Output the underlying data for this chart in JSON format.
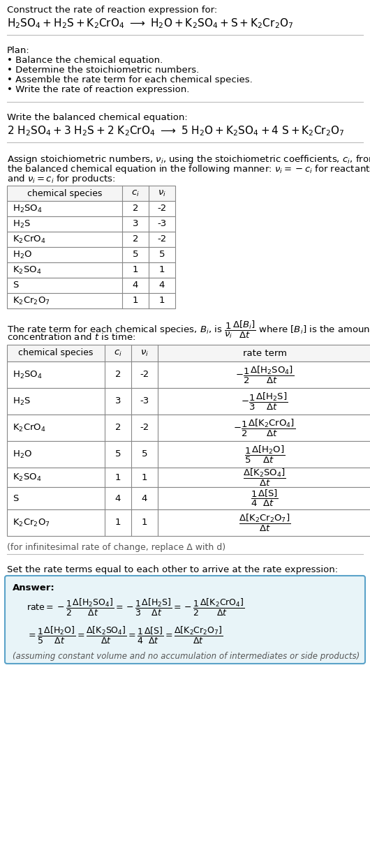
{
  "title_line1": "Construct the rate of reaction expression for:",
  "plan_header": "Plan:",
  "plan_items": [
    "• Balance the chemical equation.",
    "• Determine the stoichiometric numbers.",
    "• Assemble the rate term for each chemical species.",
    "• Write the rate of reaction expression."
  ],
  "balanced_header": "Write the balanced chemical equation:",
  "table1_headers": [
    "chemical species",
    "c_i",
    "v_i"
  ],
  "table1_rows": [
    [
      "H_2SO_4",
      "2",
      "-2"
    ],
    [
      "H_2S",
      "3",
      "-3"
    ],
    [
      "K_2CrO_4",
      "2",
      "-2"
    ],
    [
      "H_2O",
      "5",
      "5"
    ],
    [
      "K_2SO_4",
      "1",
      "1"
    ],
    [
      "S",
      "4",
      "4"
    ],
    [
      "K_2Cr_2O_7",
      "1",
      "1"
    ]
  ],
  "table2_rows": [
    [
      "H_2SO_4",
      "2",
      "-2"
    ],
    [
      "H_2S",
      "3",
      "-3"
    ],
    [
      "K_2CrO_4",
      "2",
      "-2"
    ],
    [
      "H_2O",
      "5",
      "5"
    ],
    [
      "K_2SO_4",
      "1",
      "1"
    ],
    [
      "S",
      "4",
      "4"
    ],
    [
      "K_2Cr_2O_7",
      "1",
      "1"
    ]
  ],
  "infinitesimal_note": "(for infinitesimal rate of change, replace Δ with d)",
  "set_equal_text": "Set the rate terms equal to each other to arrive at the rate expression:",
  "answer_box_color": "#e8f4f8",
  "answer_border_color": "#5ba3c9",
  "answer_label": "Answer:",
  "answer_note": "(assuming constant volume and no accumulation of intermediates or side products)",
  "bg_color": "#ffffff",
  "table_border_color": "#888888",
  "font_size": 9.5
}
